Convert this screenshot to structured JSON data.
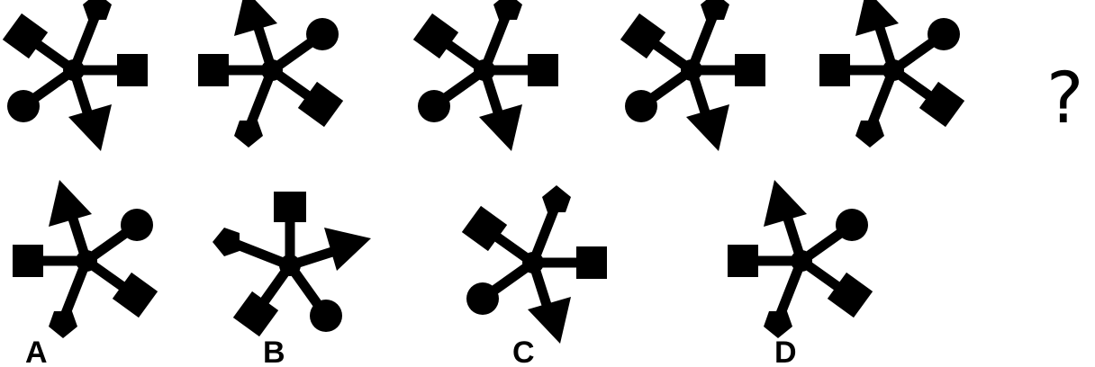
{
  "question_mark": "?",
  "option_labels": [
    "A",
    "B",
    "C",
    "D"
  ],
  "colors": {
    "figure": "#000000",
    "background": "#ffffff"
  },
  "arm_order": [
    "pentagon",
    "square",
    "circle",
    "arrow",
    "square",
    "diamond"
  ],
  "sequence": [
    {
      "rotation_deg": 0
    },
    {
      "rotation_deg": 180
    },
    {
      "rotation_deg": 0
    },
    {
      "rotation_deg": 0
    },
    {
      "rotation_deg": 180
    }
  ],
  "options": [
    {
      "label": "A",
      "rotation_deg": 180
    },
    {
      "label": "B",
      "rotation_deg": 270
    },
    {
      "label": "C",
      "rotation_deg": 0
    },
    {
      "label": "D",
      "rotation_deg": 180
    }
  ]
}
